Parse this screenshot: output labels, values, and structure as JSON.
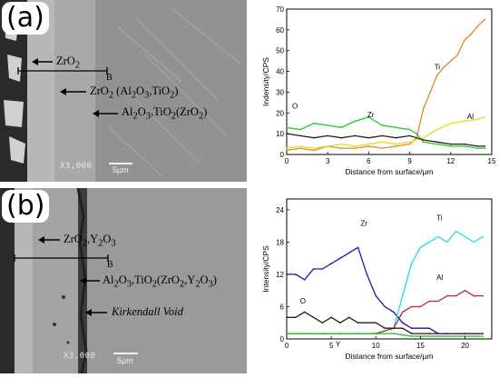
{
  "panel_a": {
    "letter": "(a)",
    "labels": {
      "l1": "ZrO<sub>2</sub>",
      "l2": "ZrO<sub>2</sub> (Al<sub>2</sub>O<sub>3</sub>,TiO<sub>2</sub>)",
      "l3": "Al<sub>2</sub>O<sub>3</sub>,TiO<sub>2</sub>(ZrO<sub>2</sub>)"
    },
    "marker_b": "B",
    "magnification": "X3,000",
    "scale": "5µm"
  },
  "panel_b": {
    "letter": "(b)",
    "labels": {
      "l1": "ZrO<sub>2</sub>,Y<sub>2</sub>O<sub>3</sub>",
      "l2": "Al<sub>2</sub>O<sub>3</sub>,TiO<sub>2</sub>(ZrO<sub>2</sub>,Y<sub>2</sub>O<sub>3</sub>)",
      "l3": "Kirkendall Void"
    },
    "marker_b": "B",
    "magnification": "X3,000",
    "scale": "5µm"
  },
  "chart_data": [
    {
      "type": "line",
      "xlabel": "Distance from surface/µm",
      "ylabel": "Indensity/CPS",
      "xlim": [
        0,
        15
      ],
      "ylim": [
        0,
        70
      ],
      "xticks": [
        0,
        3,
        6,
        9,
        12,
        15
      ],
      "yticks": [
        0,
        10,
        20,
        30,
        40,
        50,
        60,
        70
      ],
      "grid": false,
      "series": [
        {
          "name": "Ti",
          "color": "#e8862a",
          "x": [
            0,
            1,
            2,
            3,
            4,
            5,
            6,
            7,
            8,
            9,
            9.5,
            10,
            10.5,
            11,
            11.5,
            12,
            12.5,
            13,
            13.5,
            14,
            14.5
          ],
          "y": [
            2,
            3,
            2,
            4,
            3,
            3,
            4,
            3,
            4,
            5,
            8,
            22,
            30,
            38,
            42,
            45,
            48,
            55,
            58,
            62,
            65
          ]
        },
        {
          "name": "Zr",
          "color": "#22cc22",
          "x": [
            0,
            1,
            2,
            3,
            4,
            5,
            6,
            7,
            8,
            9,
            9.5,
            10,
            11,
            12,
            13,
            14,
            14.5
          ],
          "y": [
            13,
            12,
            15,
            14,
            13,
            16,
            18,
            14,
            13,
            12,
            10,
            6,
            5,
            4,
            4,
            3,
            3
          ]
        },
        {
          "name": "Al",
          "color": "#dddd22",
          "x": [
            0,
            1,
            2,
            3,
            4,
            5,
            6,
            7,
            8,
            9,
            10,
            11,
            12,
            13,
            14,
            14.5
          ],
          "y": [
            3,
            4,
            3,
            4,
            5,
            4,
            5,
            6,
            5,
            6,
            8,
            12,
            15,
            16,
            17,
            18
          ]
        },
        {
          "name": "O",
          "color": "#222222",
          "x": [
            0,
            1,
            2,
            3,
            4,
            5,
            6,
            7,
            8,
            9,
            10,
            11,
            12,
            13,
            14,
            14.5
          ],
          "y": [
            10,
            9,
            8,
            9,
            8,
            9,
            8,
            9,
            8,
            9,
            7,
            6,
            5,
            5,
            4,
            4
          ]
        }
      ]
    },
    {
      "type": "line",
      "xlabel": "Distance from surface/µm",
      "ylabel": "Intensity/CPS",
      "xlim": [
        0,
        23
      ],
      "ylim": [
        0,
        26
      ],
      "xticks": [
        0,
        5,
        10,
        15,
        20
      ],
      "yticks": [
        0,
        6,
        12,
        18,
        24
      ],
      "grid": false,
      "series": [
        {
          "name": "Zr",
          "color": "#1a1aaa",
          "x": [
            0,
            1,
            2,
            3,
            4,
            5,
            6,
            7,
            8,
            9,
            10,
            11,
            12,
            13,
            14,
            15,
            16,
            17,
            18,
            19,
            20,
            21,
            22
          ],
          "y": [
            12,
            12,
            11,
            13,
            13,
            14,
            15,
            16,
            17,
            12,
            8,
            6,
            5,
            3,
            2,
            2,
            2,
            1,
            1,
            1,
            1,
            1,
            1
          ]
        },
        {
          "name": "Ti",
          "color": "#22dddd",
          "x": [
            0,
            2,
            4,
            6,
            8,
            10,
            12,
            13,
            14,
            15,
            16,
            17,
            18,
            19,
            20,
            21,
            22
          ],
          "y": [
            1,
            1,
            1,
            1,
            1,
            1,
            2,
            8,
            14,
            17,
            18,
            19,
            18,
            20,
            19,
            18,
            19
          ]
        },
        {
          "name": "Al",
          "color": "#cc2222",
          "x": [
            0,
            2,
            4,
            6,
            8,
            10,
            12,
            13,
            14,
            15,
            16,
            17,
            18,
            19,
            20,
            21,
            22
          ],
          "y": [
            1,
            1,
            1,
            1,
            1,
            1,
            2,
            5,
            6,
            6,
            7,
            7,
            8,
            8,
            9,
            8,
            8
          ]
        },
        {
          "name": "O",
          "color": "#222222",
          "x": [
            0,
            1,
            2,
            3,
            4,
            5,
            6,
            7,
            8,
            9,
            10,
            11,
            12,
            13,
            14,
            16,
            18,
            20,
            22
          ],
          "y": [
            4,
            4,
            5,
            4,
            3,
            4,
            3,
            4,
            3,
            3,
            3,
            2,
            2,
            2,
            1,
            1,
            1,
            1,
            1
          ]
        },
        {
          "name": "Y",
          "color": "#22bb22",
          "x": [
            0,
            2,
            4,
            6,
            8,
            10,
            12,
            14,
            16,
            18,
            20,
            22
          ],
          "y": [
            1,
            1,
            1,
            1,
            1,
            1,
            1,
            0.5,
            0.5,
            0.5,
            0.5,
            0.5
          ]
        }
      ]
    }
  ]
}
